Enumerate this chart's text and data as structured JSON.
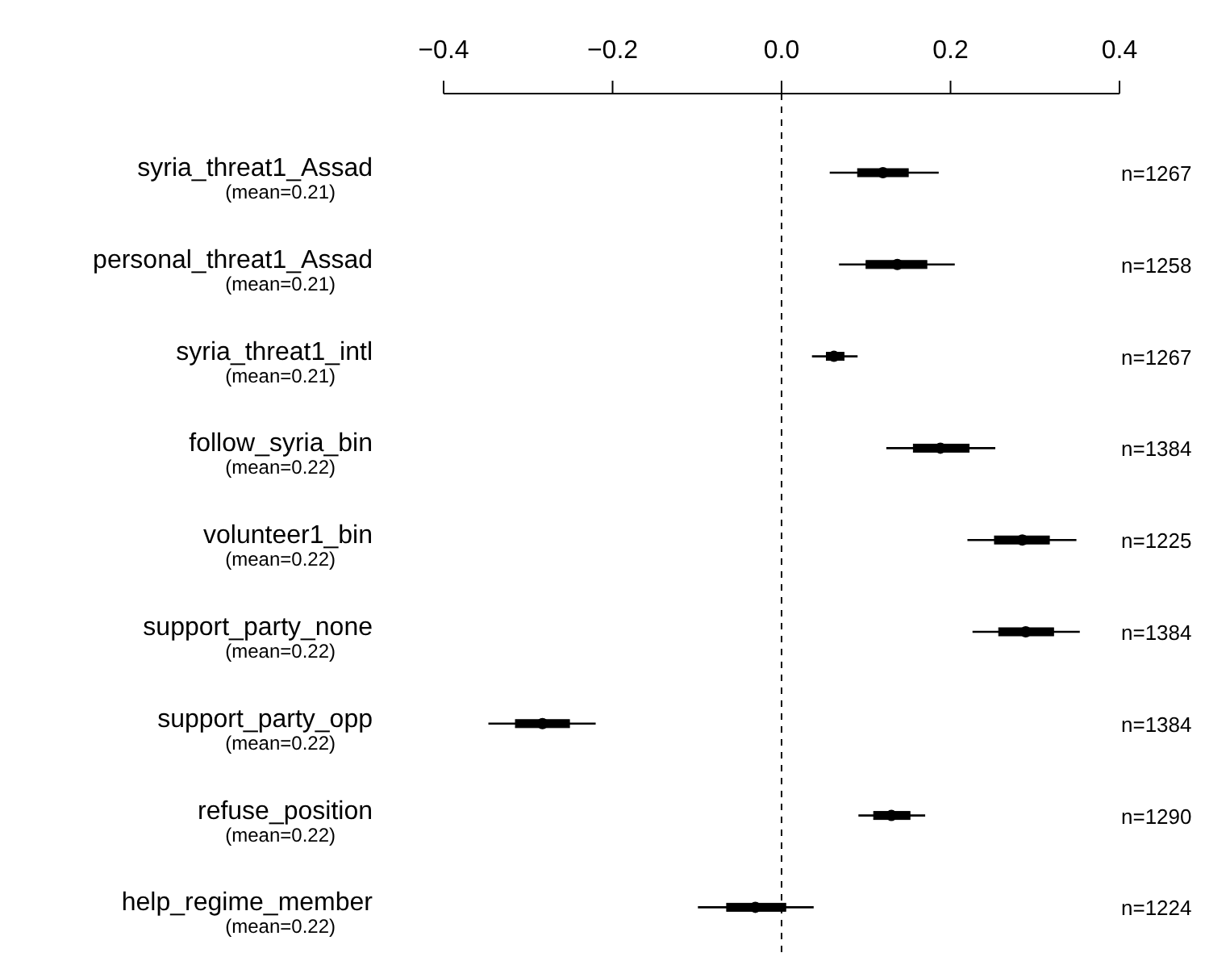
{
  "chart_data": {
    "type": "box",
    "orientation": "horizontal",
    "categories": [
      "syria_threat1_Assad\n(mean=0.21)",
      "personal_threat1_Assad\n(mean=0.21)",
      "syria_threat1_intl\n(mean=0.21)",
      "follow_syria_bin\n(mean=0.22)",
      "volunteer1_bin\n(mean=0.22)",
      "support_party_none\n(mean=0.22)",
      "support_party_opp\n(mean=0.22)",
      "refuse_position\n(mean=0.22)",
      "help_regime_member\n(mean=0.22)"
    ],
    "color": "#000000",
    "boxes": [
      {
        "low": 0.057,
        "q1": 0.09,
        "median": 0.12,
        "q3": 0.15,
        "high": 0.186
      },
      {
        "low": 0.068,
        "q1": 0.1,
        "median": 0.137,
        "q3": 0.172,
        "high": 0.205
      },
      {
        "low": 0.036,
        "q1": 0.053,
        "median": 0.062,
        "q3": 0.074,
        "high": 0.09
      },
      {
        "low": 0.124,
        "q1": 0.156,
        "median": 0.188,
        "q3": 0.222,
        "high": 0.253
      },
      {
        "low": 0.22,
        "q1": 0.252,
        "median": 0.285,
        "q3": 0.317,
        "high": 0.349
      },
      {
        "low": 0.226,
        "q1": 0.257,
        "median": 0.289,
        "q3": 0.322,
        "high": 0.353
      },
      {
        "low": -0.347,
        "q1": -0.315,
        "median": -0.283,
        "q3": -0.251,
        "high": -0.22
      },
      {
        "low": 0.091,
        "q1": 0.109,
        "median": 0.13,
        "q3": 0.152,
        "high": 0.17
      },
      {
        "low": -0.099,
        "q1": -0.065,
        "median": -0.031,
        "q3": 0.005,
        "high": 0.038
      }
    ],
    "xlim": [
      -0.4,
      0.4
    ],
    "xticks": [
      {
        "value": -0.4,
        "label": "−0.4"
      },
      {
        "value": -0.2,
        "label": "−0.2"
      },
      {
        "value": 0,
        "label": "0.0"
      },
      {
        "value": 0.2,
        "label": "0.2"
      },
      {
        "value": 0.4,
        "label": "0.4"
      }
    ],
    "ref_lines": [
      {
        "axis": "x",
        "value": 0,
        "color": "#000000",
        "line_style": "dashed"
      }
    ],
    "annotations": [
      "n=1267",
      "n=1258",
      "n=1267",
      "n=1384",
      "n=1225",
      "n=1384",
      "n=1384",
      "n=1290",
      "n=1224"
    ],
    "grid": false
  }
}
